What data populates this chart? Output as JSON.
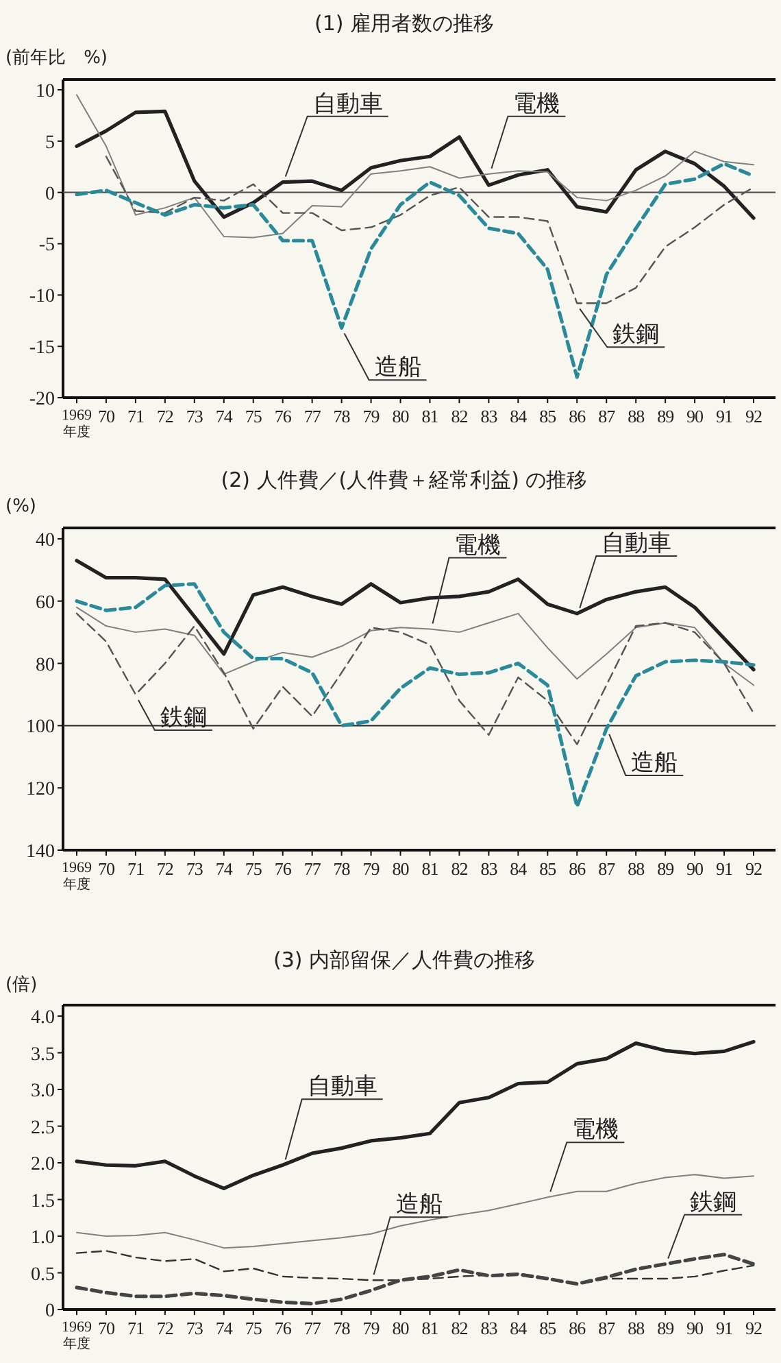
{
  "chart_data": [
    {
      "type": "line",
      "title": "(1) 雇用者数の推移",
      "ylabel": "(前年比　%)",
      "categories": [
        "1969年度",
        "70",
        "71",
        "72",
        "73",
        "74",
        "75",
        "76",
        "77",
        "78",
        "79",
        "80",
        "81",
        "82",
        "83",
        "84",
        "85",
        "86",
        "87",
        "88",
        "89",
        "90",
        "91",
        "92"
      ],
      "ylim": [
        -20,
        11
      ],
      "yticks": [
        -20,
        -15,
        -10,
        -5,
        0,
        5,
        10
      ],
      "grid": false,
      "legend": false,
      "marker": "none",
      "ref_lines": [
        {
          "axis": "y",
          "value": 0,
          "color": "#555555"
        }
      ],
      "series": [
        {
          "name": "自動車",
          "color": "#222222",
          "line_style": "solid",
          "values": [
            4.5,
            6.0,
            7.8,
            7.9,
            1.1,
            -2.4,
            -1.0,
            1.0,
            1.1,
            0.2,
            2.4,
            3.1,
            3.5,
            5.4,
            0.7,
            1.7,
            2.2,
            -1.4,
            -1.9,
            2.2,
            4.0,
            2.8,
            0.6,
            -2.5
          ]
        },
        {
          "name": "電機",
          "color": "#808080",
          "line_style": "solid",
          "values": [
            9.5,
            4.5,
            -2.2,
            -1.5,
            -0.5,
            -4.3,
            -4.4,
            -4.0,
            -1.3,
            -1.4,
            1.8,
            2.1,
            2.5,
            1.4,
            1.8,
            2.1,
            2.0,
            -0.5,
            -0.8,
            0.2,
            1.6,
            4.0,
            3.0,
            2.7
          ]
        },
        {
          "name": "鉄鋼",
          "color": "#555555",
          "line_style": "dashed",
          "values": [
            null,
            3.5,
            -1.8,
            -2.0,
            -0.5,
            -0.8,
            0.8,
            -2.0,
            -2.0,
            -3.7,
            -3.4,
            -2.2,
            -0.3,
            0.5,
            -2.4,
            -2.4,
            -2.8,
            -10.8,
            -10.8,
            -9.3,
            -5.3,
            -3.4,
            -1.2,
            0.5
          ]
        },
        {
          "name": "造船",
          "color": "#2a8a9a",
          "line_style": "dashed",
          "values": [
            -0.2,
            0.2,
            -1.0,
            -2.2,
            -1.2,
            -1.5,
            -1.2,
            -4.7,
            -4.7,
            -13.2,
            -5.5,
            -1.2,
            1.0,
            -0.3,
            -3.5,
            -4.0,
            -7.5,
            -18.0,
            -8.0,
            -3.5,
            0.8,
            1.3,
            2.8,
            1.6
          ]
        }
      ]
    },
    {
      "type": "line",
      "title": "(2) 人件費／(人件費＋経常利益) の推移",
      "ylabel": "(%)",
      "categories": [
        "1969年度",
        "70",
        "71",
        "72",
        "73",
        "74",
        "75",
        "76",
        "77",
        "78",
        "79",
        "80",
        "81",
        "82",
        "83",
        "84",
        "85",
        "86",
        "87",
        "88",
        "89",
        "90",
        "91",
        "92"
      ],
      "ylim": [
        140,
        36.5
      ],
      "yticks": [
        40,
        60,
        80,
        100,
        120,
        140
      ],
      "grid": false,
      "legend": false,
      "marker": "none",
      "ref_lines": [
        {
          "axis": "y",
          "value": 100,
          "color": "#333333"
        }
      ],
      "series": [
        {
          "name": "自動車",
          "color": "#222222",
          "line_style": "solid",
          "values": [
            47,
            52.5,
            52.5,
            53,
            65,
            77,
            58,
            55.5,
            58.5,
            61,
            54.5,
            60.5,
            59,
            58.5,
            57,
            53,
            61,
            64,
            59.5,
            57,
            55.5,
            62,
            72,
            82
          ]
        },
        {
          "name": "電機",
          "color": "#808080",
          "line_style": "solid",
          "values": [
            62,
            68,
            70,
            69,
            71,
            83.5,
            79.5,
            76.5,
            78,
            74.5,
            69.5,
            68.5,
            69,
            70,
            67,
            64,
            75,
            85,
            77,
            68.5,
            67,
            68.5,
            80,
            87
          ]
        },
        {
          "name": "鉄鋼",
          "color": "#555555",
          "line_style": "dashed",
          "values": [
            64,
            73,
            90,
            80,
            68,
            83,
            101,
            87.5,
            97,
            83,
            68.5,
            70,
            74,
            92,
            103,
            84.5,
            92,
            106,
            87,
            68,
            67,
            70,
            80,
            96
          ]
        },
        {
          "name": "造船",
          "color": "#2a8a9a",
          "line_style": "dashed",
          "values": [
            60,
            63,
            62,
            55,
            54.5,
            70,
            78.5,
            78.5,
            83,
            100,
            98.5,
            88,
            81.5,
            83.5,
            83,
            80,
            87,
            126,
            101,
            84,
            79.5,
            79,
            79.5,
            80.5
          ]
        }
      ]
    },
    {
      "type": "line",
      "title": "(3) 内部留保／人件費の推移",
      "ylabel": "(倍)",
      "categories": [
        "1969年度",
        "70",
        "71",
        "72",
        "73",
        "74",
        "75",
        "76",
        "77",
        "78",
        "79",
        "80",
        "81",
        "82",
        "83",
        "84",
        "85",
        "86",
        "87",
        "88",
        "89",
        "90",
        "91",
        "92"
      ],
      "ylim": [
        0,
        4.15
      ],
      "yticks": [
        {
          "value": 0,
          "label": "0"
        },
        {
          "value": 0.5,
          "label": "0.5"
        },
        {
          "value": 1,
          "label": "1.0"
        },
        {
          "value": 1.5,
          "label": "1.5"
        },
        {
          "value": 2,
          "label": "2.0"
        },
        {
          "value": 2.5,
          "label": "2.5"
        },
        {
          "value": 3,
          "label": "3.0"
        },
        {
          "value": 3.5,
          "label": "3.5"
        },
        {
          "value": 4,
          "label": "4.0"
        }
      ],
      "grid": false,
      "legend": false,
      "marker": "none",
      "series": [
        {
          "name": "自動車",
          "color": "#222222",
          "line_style": "solid",
          "values": [
            2.02,
            1.97,
            1.96,
            2.02,
            1.82,
            1.65,
            1.83,
            1.97,
            2.13,
            2.2,
            2.3,
            2.34,
            2.4,
            2.82,
            2.89,
            3.08,
            3.1,
            3.35,
            3.42,
            3.63,
            3.53,
            3.49,
            3.52,
            3.65
          ]
        },
        {
          "name": "電機",
          "color": "#808080",
          "line_style": "solid",
          "values": [
            1.05,
            1.0,
            1.01,
            1.05,
            0.95,
            0.84,
            0.86,
            0.9,
            0.94,
            0.98,
            1.03,
            1.14,
            1.22,
            1.29,
            1.35,
            1.44,
            1.53,
            1.61,
            1.61,
            1.72,
            1.8,
            1.84,
            1.79,
            1.82
          ]
        },
        {
          "name": "造船",
          "color": "#333333",
          "line_style": "dashed",
          "values": [
            0.77,
            0.8,
            0.71,
            0.66,
            0.69,
            0.52,
            0.56,
            0.45,
            0.43,
            0.42,
            0.4,
            0.4,
            0.42,
            0.45,
            0.47,
            0.49,
            0.43,
            0.34,
            0.42,
            0.42,
            0.42,
            0.45,
            0.53,
            0.6
          ]
        },
        {
          "name": "鉄鋼",
          "color": "#444444",
          "line_style": "dashed",
          "values": [
            0.3,
            0.23,
            0.18,
            0.18,
            0.22,
            0.19,
            0.14,
            0.1,
            0.08,
            0.14,
            0.26,
            0.4,
            0.45,
            0.54,
            0.46,
            0.48,
            0.42,
            0.35,
            0.44,
            0.55,
            0.62,
            0.69,
            0.75,
            0.62
          ]
        }
      ]
    }
  ]
}
